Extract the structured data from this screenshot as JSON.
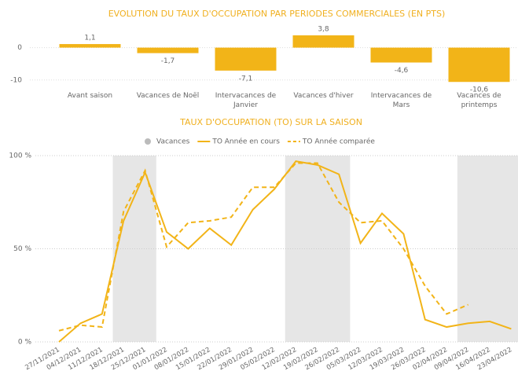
{
  "chart_data": [
    {
      "type": "bar",
      "title": "EVOLUTION DU TAUX D'OCCUPATION PAR PERIODES COMMERCIALES (EN PTS)",
      "categories": [
        "Avant saison",
        "Vacances de Noël",
        "Intervacances de Janvier",
        "Vacances d'hiver",
        "Intervacances de Mars",
        "Vacances de printemps"
      ],
      "values": [
        1.1,
        -1.7,
        -7.1,
        3.8,
        -4.6,
        -10.6
      ],
      "value_labels": [
        "1,1",
        "-1,7",
        "-7,1",
        "3,8",
        "-4,6",
        "-10,6"
      ],
      "color": "#f2b418",
      "ylim": [
        -12,
        5
      ],
      "yticks": [
        0,
        -10
      ]
    },
    {
      "type": "line",
      "title": "TAUX D'OCCUPATION (TO) SUR LA SAISON",
      "x": [
        "27/11/2021",
        "04/12/2021",
        "11/12/2021",
        "18/12/2021",
        "25/12/2021",
        "01/01/2022",
        "08/01/2022",
        "15/01/2022",
        "22/01/2022",
        "29/01/2022",
        "05/02/2022",
        "12/02/2022",
        "19/02/2022",
        "26/02/2022",
        "05/03/2022",
        "12/03/2022",
        "19/03/2022",
        "26/03/2022",
        "02/04/2022",
        "09/04/2022",
        "16/04/2022",
        "23/04/2022"
      ],
      "series": [
        {
          "name": "Vacances",
          "color": "#e6e6e6",
          "style": "band",
          "values": [
            null,
            null,
            null,
            100,
            100,
            null,
            null,
            null,
            null,
            null,
            null,
            100,
            100,
            100,
            null,
            null,
            null,
            null,
            null,
            100,
            100,
            100
          ]
        },
        {
          "name": "TO Année en cours",
          "color": "#f2b418",
          "style": "solid",
          "values": [
            0,
            10,
            15,
            65,
            91,
            59,
            50,
            61,
            52,
            71,
            82,
            97,
            95,
            90,
            53,
            69,
            58,
            12,
            8,
            10,
            11,
            7
          ]
        },
        {
          "name": "TO Année comparée",
          "color": "#f2b418",
          "style": "dashed",
          "values": [
            6,
            9,
            8,
            70,
            92,
            51,
            64,
            65,
            67,
            83,
            83,
            96,
            96,
            75,
            64,
            65,
            50,
            30,
            15,
            20,
            null,
            null
          ]
        }
      ],
      "ylim": [
        0,
        100
      ],
      "yticks": [
        {
          "value": 0,
          "label": "0 %"
        },
        {
          "value": 50,
          "label": "50 %"
        },
        {
          "value": 100,
          "label": "100 %"
        }
      ],
      "grid": true
    }
  ]
}
